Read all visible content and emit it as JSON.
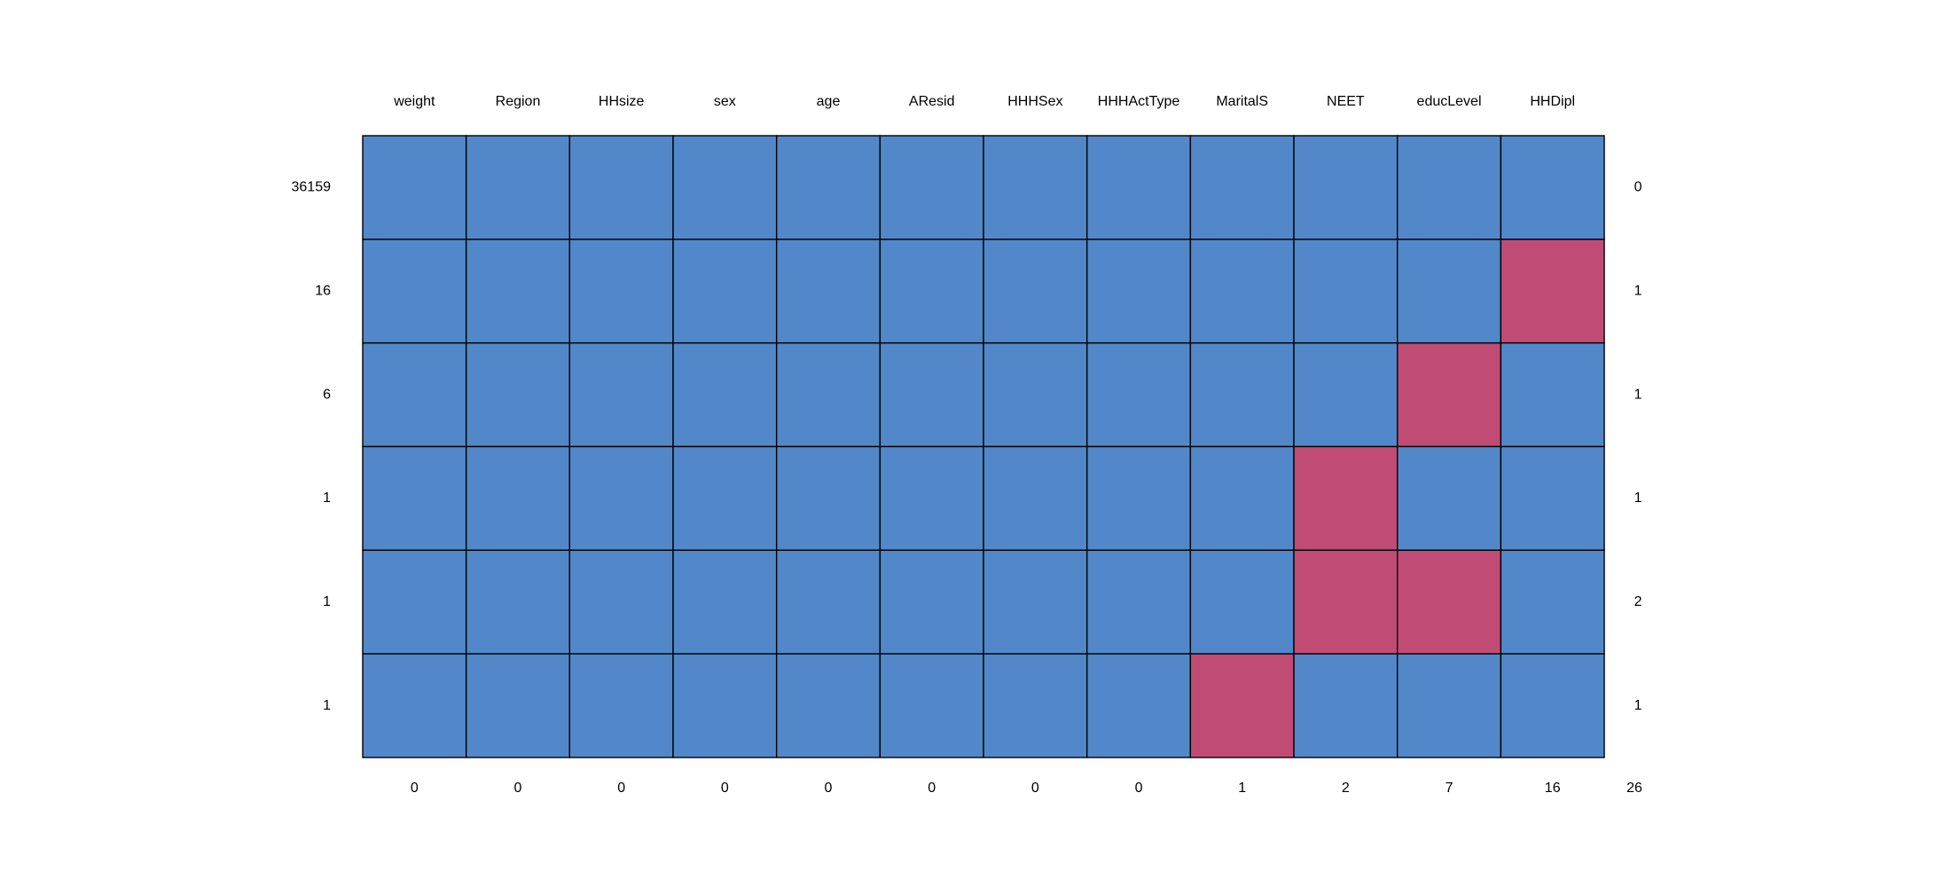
{
  "chart_data": {
    "type": "heatmap",
    "title": "",
    "variables": [
      "weight",
      "Region",
      "HHsize",
      "sex",
      "age",
      "AResid",
      "HHHSex",
      "HHHActType",
      "MaritalS",
      "NEET",
      "educLevel",
      "HHDipl"
    ],
    "patterns": [
      {
        "count": "36159",
        "missing_vars": "0",
        "cells": [
          1,
          1,
          1,
          1,
          1,
          1,
          1,
          1,
          1,
          1,
          1,
          1
        ]
      },
      {
        "count": "16",
        "missing_vars": "1",
        "cells": [
          1,
          1,
          1,
          1,
          1,
          1,
          1,
          1,
          1,
          1,
          1,
          0
        ]
      },
      {
        "count": "6",
        "missing_vars": "1",
        "cells": [
          1,
          1,
          1,
          1,
          1,
          1,
          1,
          1,
          1,
          1,
          0,
          1
        ]
      },
      {
        "count": "1",
        "missing_vars": "1",
        "cells": [
          1,
          1,
          1,
          1,
          1,
          1,
          1,
          1,
          1,
          0,
          1,
          1
        ]
      },
      {
        "count": "1",
        "missing_vars": "2",
        "cells": [
          1,
          1,
          1,
          1,
          1,
          1,
          1,
          1,
          1,
          0,
          0,
          1
        ]
      },
      {
        "count": "1",
        "missing_vars": "1",
        "cells": [
          1,
          1,
          1,
          1,
          1,
          1,
          1,
          1,
          0,
          1,
          1,
          1
        ]
      }
    ],
    "missing_per_variable": [
      "0",
      "0",
      "0",
      "0",
      "0",
      "0",
      "0",
      "0",
      "1",
      "2",
      "7",
      "16"
    ],
    "total_missing": "26",
    "colors": {
      "observed": "#5288c9",
      "missing": "#c04c76",
      "border": "#000000"
    }
  }
}
